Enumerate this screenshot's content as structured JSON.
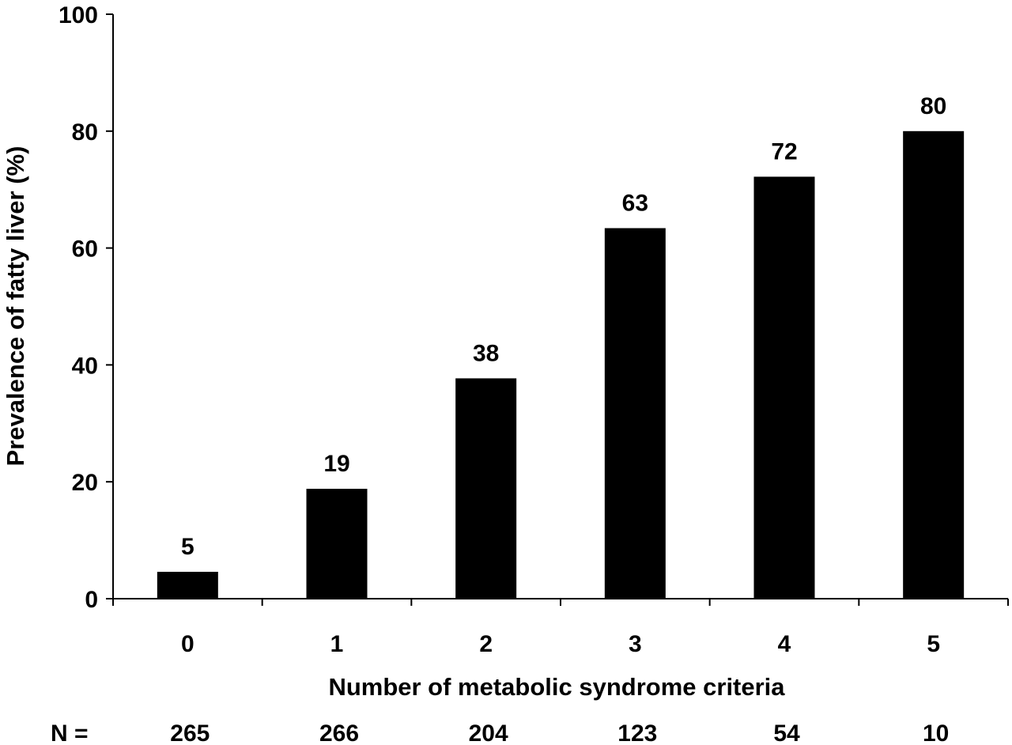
{
  "chart_data": {
    "type": "bar",
    "title": "",
    "xlabel": "Number of metabolic syndrome criteria",
    "ylabel": "Prevalence of fatty liver (%)",
    "categories": [
      "0",
      "1",
      "2",
      "3",
      "4",
      "5"
    ],
    "values": [
      4.6,
      18.8,
      37.7,
      63.4,
      72.2,
      80.0
    ],
    "data_labels": [
      "5",
      "19",
      "38",
      "63",
      "72",
      "80"
    ],
    "ylim": [
      0,
      100
    ],
    "yticks": [
      "0",
      "20",
      "40",
      "60",
      "80",
      "100"
    ],
    "grid": false,
    "legend": "none",
    "bar_color": "#000000",
    "n_row": {
      "label": "N =",
      "values": [
        "265",
        "266",
        "204",
        "123",
        "54",
        "10"
      ]
    }
  }
}
